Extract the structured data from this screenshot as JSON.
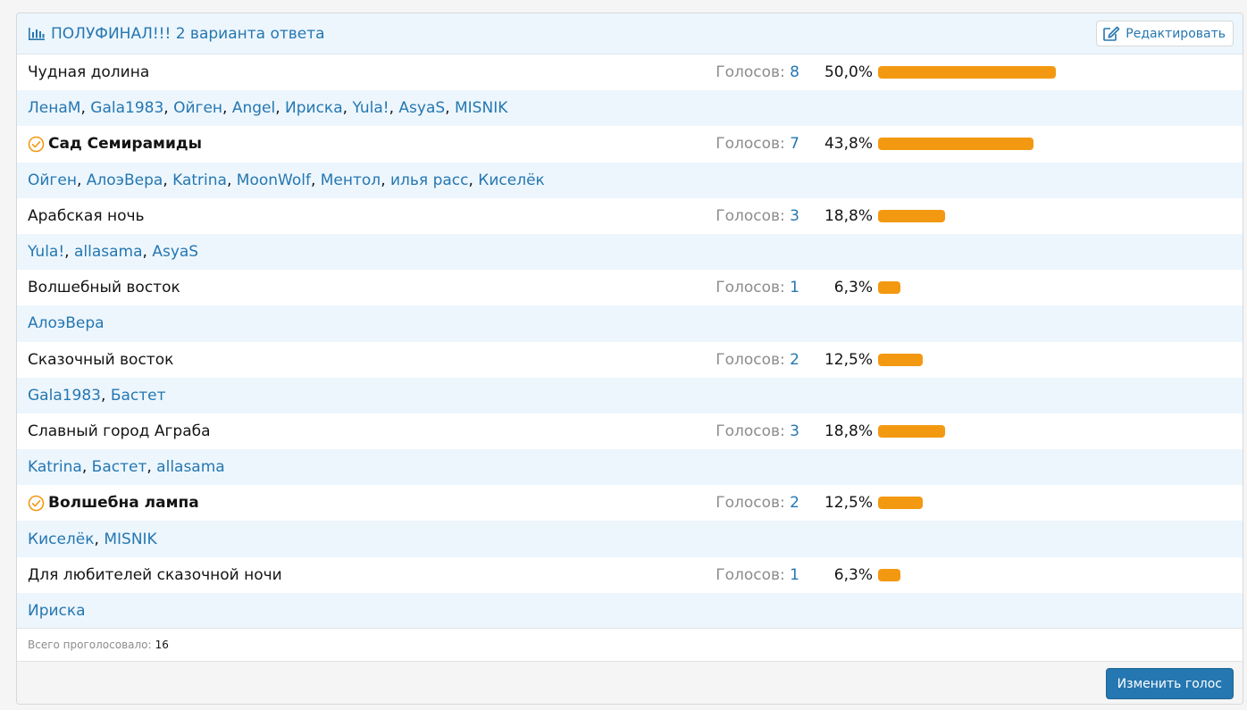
{
  "header": {
    "title": "ПОЛУФИНАЛ!!! 2 варианта ответа",
    "title_icon": "bar-chart-icon",
    "edit_label": "Редактировать",
    "edit_icon": "edit-icon"
  },
  "votes_label": "Голосов:",
  "accent_color": "#2577b1",
  "bar_color": "#f39911",
  "options": [
    {
      "label": "Чудная долина",
      "votes": "8",
      "percent": "50,0%",
      "fraction": 0.5,
      "selected": false,
      "voters": [
        "ЛенаМ",
        "Gala1983",
        "Ойген",
        "Angel",
        "Ириска",
        "Yula!",
        "AsyaS",
        "MISNIK"
      ]
    },
    {
      "label": "Сад Семирамиды",
      "votes": "7",
      "percent": "43,8%",
      "fraction": 0.438,
      "selected": true,
      "voters": [
        "Ойген",
        "АлоэВера",
        "Katrina",
        "MoonWolf",
        "Ментол",
        "илья расс",
        "Киселёк"
      ]
    },
    {
      "label": "Арабская ночь",
      "votes": "3",
      "percent": "18,8%",
      "fraction": 0.188,
      "selected": false,
      "voters": [
        "Yula!",
        "allasama",
        "AsyaS"
      ]
    },
    {
      "label": "Волшебный восток",
      "votes": "1",
      "percent": "6,3%",
      "fraction": 0.063,
      "selected": false,
      "voters": [
        "АлоэВера"
      ]
    },
    {
      "label": "Сказочный восток",
      "votes": "2",
      "percent": "12,5%",
      "fraction": 0.125,
      "selected": false,
      "voters": [
        "Gala1983",
        "Бастет"
      ]
    },
    {
      "label": "Славный город Аграба",
      "votes": "3",
      "percent": "18,8%",
      "fraction": 0.188,
      "selected": false,
      "voters": [
        "Katrina",
        "Бастет",
        "allasama"
      ]
    },
    {
      "label": "Волшебна лампа",
      "votes": "2",
      "percent": "12,5%",
      "fraction": 0.125,
      "selected": true,
      "voters": [
        "Киселёк",
        "MISNIK"
      ]
    },
    {
      "label": "Для любителей сказочной ночи",
      "votes": "1",
      "percent": "6,3%",
      "fraction": 0.063,
      "selected": false,
      "voters": [
        "Ириска"
      ]
    }
  ],
  "total": {
    "label": "Всего проголосовало:",
    "value": "16"
  },
  "footer": {
    "change_vote_label": "Изменить голос"
  }
}
